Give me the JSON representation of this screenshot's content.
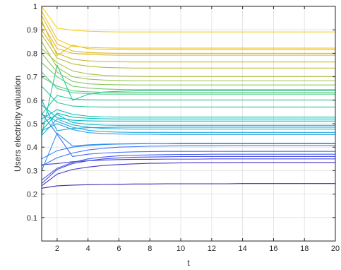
{
  "chart_data": {
    "type": "line",
    "title": "",
    "xlabel": "t",
    "ylabel": "Users electricity valuation",
    "xlim": [
      1,
      20
    ],
    "ylim": [
      0,
      1
    ],
    "x": [
      1,
      2,
      3,
      4,
      5,
      6,
      7,
      8,
      9,
      10,
      11,
      12,
      13,
      14,
      15,
      16,
      17,
      18,
      19,
      20
    ],
    "x_ticks": [
      2,
      4,
      6,
      8,
      10,
      12,
      14,
      16,
      18,
      20
    ],
    "x_tick_labels": [
      "2",
      "4",
      "6",
      "8",
      "10",
      "12",
      "14",
      "16",
      "18",
      "20"
    ],
    "y_ticks": [
      0.1,
      0.2,
      0.3,
      0.4,
      0.5,
      0.6,
      0.7,
      0.8,
      0.9,
      1
    ],
    "y_tick_labels": [
      "0.1",
      "0.2",
      "0.3",
      "0.4",
      "0.5",
      "0.6",
      "0.7",
      "0.8",
      "0.9",
      "1"
    ],
    "grid": true,
    "colormap": "parula",
    "series": [
      {
        "color": "#3e26a8",
        "values": [
          0.225,
          0.235,
          0.238,
          0.24,
          0.241,
          0.242,
          0.243,
          0.243,
          0.244,
          0.244,
          0.244,
          0.244,
          0.244,
          0.245,
          0.245,
          0.245,
          0.245,
          0.245,
          0.245,
          0.245
        ]
      },
      {
        "color": "#4134c4",
        "values": [
          0.235,
          0.285,
          0.305,
          0.315,
          0.322,
          0.326,
          0.329,
          0.331,
          0.332,
          0.333,
          0.334,
          0.334,
          0.334,
          0.335,
          0.335,
          0.335,
          0.335,
          0.335,
          0.335,
          0.335
        ]
      },
      {
        "color": "#4541d7",
        "values": [
          0.325,
          0.33,
          0.338,
          0.342,
          0.345,
          0.347,
          0.348,
          0.348,
          0.349,
          0.349,
          0.349,
          0.35,
          0.35,
          0.35,
          0.35,
          0.35,
          0.35,
          0.35,
          0.35,
          0.35
        ]
      },
      {
        "color": "#474fe4",
        "values": [
          0.245,
          0.305,
          0.33,
          0.342,
          0.35,
          0.354,
          0.357,
          0.358,
          0.359,
          0.36,
          0.36,
          0.36,
          0.36,
          0.36,
          0.36,
          0.36,
          0.36,
          0.36,
          0.36,
          0.36
        ]
      },
      {
        "color": "#475ded",
        "values": [
          0.26,
          0.31,
          0.335,
          0.35,
          0.358,
          0.363,
          0.366,
          0.367,
          0.368,
          0.369,
          0.369,
          0.37,
          0.37,
          0.37,
          0.37,
          0.37,
          0.37,
          0.37,
          0.37,
          0.37
        ]
      },
      {
        "color": "#446bf3",
        "values": [
          0.545,
          0.455,
          0.36,
          0.37,
          0.375,
          0.378,
          0.38,
          0.381,
          0.382,
          0.382,
          0.382,
          0.382,
          0.382,
          0.382,
          0.382,
          0.382,
          0.382,
          0.382,
          0.382,
          0.382
        ]
      },
      {
        "color": "#3b79f7",
        "values": [
          0.32,
          0.355,
          0.375,
          0.388,
          0.395,
          0.4,
          0.402,
          0.404,
          0.405,
          0.406,
          0.406,
          0.406,
          0.407,
          0.407,
          0.407,
          0.407,
          0.407,
          0.407,
          0.407,
          0.407
        ]
      },
      {
        "color": "#3286f4",
        "values": [
          0.35,
          0.385,
          0.4,
          0.407,
          0.411,
          0.413,
          0.414,
          0.415,
          0.415,
          0.415,
          0.415,
          0.415,
          0.415,
          0.415,
          0.415,
          0.415,
          0.415,
          0.415,
          0.415,
          0.415
        ]
      },
      {
        "color": "#2d93ed",
        "values": [
          0.3,
          0.46,
          0.405,
          0.41,
          0.413,
          0.414,
          0.415,
          0.416,
          0.416,
          0.417,
          0.417,
          0.417,
          0.417,
          0.417,
          0.417,
          0.417,
          0.417,
          0.417,
          0.417,
          0.417
        ]
      },
      {
        "color": "#2a9fe6",
        "values": [
          0.47,
          0.5,
          0.475,
          0.462,
          0.458,
          0.456,
          0.455,
          0.455,
          0.454,
          0.454,
          0.454,
          0.454,
          0.454,
          0.454,
          0.454,
          0.454,
          0.454,
          0.454,
          0.454,
          0.454
        ]
      },
      {
        "color": "#25a9df",
        "values": [
          0.54,
          0.51,
          0.485,
          0.472,
          0.466,
          0.464,
          0.463,
          0.463,
          0.463,
          0.463,
          0.463,
          0.463,
          0.463,
          0.463,
          0.463,
          0.463,
          0.463,
          0.463,
          0.463,
          0.463
        ]
      },
      {
        "color": "#1fb2d8",
        "values": [
          0.45,
          0.52,
          0.495,
          0.485,
          0.48,
          0.478,
          0.477,
          0.477,
          0.477,
          0.477,
          0.477,
          0.477,
          0.477,
          0.477,
          0.477,
          0.477,
          0.477,
          0.477,
          0.477,
          0.477
        ]
      },
      {
        "color": "#1aa5e0",
        "values": [
          0.6,
          0.47,
          0.48,
          0.483,
          0.484,
          0.485,
          0.485,
          0.485,
          0.485,
          0.485,
          0.485,
          0.485,
          0.485,
          0.485,
          0.485,
          0.485,
          0.485,
          0.485,
          0.485,
          0.485
        ]
      },
      {
        "color": "#12b7d0",
        "values": [
          0.5,
          0.54,
          0.505,
          0.497,
          0.494,
          0.493,
          0.493,
          0.493,
          0.493,
          0.493,
          0.493,
          0.493,
          0.493,
          0.493,
          0.493,
          0.493,
          0.493,
          0.493,
          0.493,
          0.493
        ]
      },
      {
        "color": "#06bdc5",
        "values": [
          0.58,
          0.525,
          0.515,
          0.512,
          0.511,
          0.511,
          0.511,
          0.511,
          0.511,
          0.511,
          0.511,
          0.511,
          0.511,
          0.511,
          0.511,
          0.511,
          0.511,
          0.511,
          0.511,
          0.511
        ]
      },
      {
        "color": "#04c1bb",
        "values": [
          0.47,
          0.545,
          0.528,
          0.523,
          0.521,
          0.52,
          0.52,
          0.52,
          0.52,
          0.52,
          0.52,
          0.52,
          0.52,
          0.52,
          0.52,
          0.52,
          0.52,
          0.52,
          0.52,
          0.52
        ]
      },
      {
        "color": "#0ec4b0",
        "values": [
          0.52,
          0.56,
          0.54,
          0.532,
          0.529,
          0.528,
          0.528,
          0.528,
          0.528,
          0.528,
          0.528,
          0.528,
          0.528,
          0.528,
          0.528,
          0.528,
          0.528,
          0.528,
          0.528,
          0.528
        ]
      },
      {
        "color": "#23c7a4",
        "values": [
          0.66,
          0.59,
          0.575,
          0.572,
          0.571,
          0.571,
          0.571,
          0.571,
          0.571,
          0.571,
          0.571,
          0.571,
          0.571,
          0.571,
          0.571,
          0.571,
          0.571,
          0.571,
          0.571,
          0.571
        ]
      },
      {
        "color": "#35ca97",
        "values": [
          0.54,
          0.62,
          0.605,
          0.602,
          0.601,
          0.601,
          0.601,
          0.601,
          0.601,
          0.601,
          0.601,
          0.601,
          0.601,
          0.601,
          0.601,
          0.601,
          0.601,
          0.601,
          0.601,
          0.601
        ]
      },
      {
        "color": "#49cb88",
        "values": [
          0.72,
          0.65,
          0.632,
          0.628,
          0.626,
          0.626,
          0.626,
          0.626,
          0.626,
          0.626,
          0.626,
          0.626,
          0.626,
          0.626,
          0.626,
          0.626,
          0.626,
          0.626,
          0.626,
          0.626
        ]
      },
      {
        "color": "#5dcb78",
        "values": [
          0.7,
          0.66,
          0.64,
          0.636,
          0.634,
          0.633,
          0.633,
          0.633,
          0.633,
          0.633,
          0.633,
          0.633,
          0.633,
          0.633,
          0.633,
          0.633,
          0.633,
          0.633,
          0.633,
          0.633
        ]
      },
      {
        "color": "#27c8a0",
        "values": [
          0.45,
          0.75,
          0.6,
          0.625,
          0.635,
          0.638,
          0.64,
          0.641,
          0.641,
          0.641,
          0.641,
          0.641,
          0.641,
          0.641,
          0.641,
          0.641,
          0.641,
          0.641,
          0.641,
          0.641
        ]
      },
      {
        "color": "#71ca6a",
        "values": [
          0.76,
          0.7,
          0.66,
          0.652,
          0.648,
          0.646,
          0.645,
          0.645,
          0.645,
          0.645,
          0.645,
          0.645,
          0.645,
          0.645,
          0.645,
          0.645,
          0.645,
          0.645,
          0.645,
          0.645
        ]
      },
      {
        "color": "#86c75c",
        "values": [
          0.8,
          0.72,
          0.68,
          0.67,
          0.667,
          0.666,
          0.665,
          0.665,
          0.665,
          0.665,
          0.665,
          0.665,
          0.665,
          0.665,
          0.665,
          0.665,
          0.665,
          0.665,
          0.665,
          0.665
        ]
      },
      {
        "color": "#99c44f",
        "values": [
          0.85,
          0.74,
          0.7,
          0.69,
          0.686,
          0.684,
          0.683,
          0.683,
          0.683,
          0.683,
          0.683,
          0.683,
          0.683,
          0.683,
          0.683,
          0.683,
          0.683,
          0.683,
          0.683,
          0.683
        ]
      },
      {
        "color": "#aac043",
        "values": [
          0.82,
          0.76,
          0.725,
          0.712,
          0.706,
          0.703,
          0.702,
          0.701,
          0.701,
          0.701,
          0.701,
          0.701,
          0.701,
          0.701,
          0.701,
          0.701,
          0.701,
          0.701,
          0.701,
          0.701
        ]
      },
      {
        "color": "#bbbc38",
        "values": [
          0.88,
          0.78,
          0.755,
          0.745,
          0.74,
          0.738,
          0.737,
          0.737,
          0.737,
          0.737,
          0.737,
          0.737,
          0.737,
          0.737,
          0.737,
          0.737,
          0.737,
          0.737,
          0.737,
          0.737
        ]
      },
      {
        "color": "#cab92f",
        "values": [
          0.9,
          0.8,
          0.775,
          0.768,
          0.765,
          0.764,
          0.763,
          0.763,
          0.763,
          0.763,
          0.763,
          0.763,
          0.763,
          0.763,
          0.763,
          0.763,
          0.763,
          0.763,
          0.763,
          0.763
        ]
      },
      {
        "color": "#d8b726",
        "values": [
          0.93,
          0.82,
          0.8,
          0.795,
          0.793,
          0.792,
          0.792,
          0.792,
          0.792,
          0.792,
          0.792,
          0.792,
          0.792,
          0.792,
          0.792,
          0.792,
          0.792,
          0.792,
          0.792,
          0.792
        ]
      },
      {
        "color": "#e3b81f",
        "values": [
          0.96,
          0.84,
          0.81,
          0.803,
          0.801,
          0.8,
          0.8,
          0.8,
          0.8,
          0.8,
          0.8,
          0.8,
          0.8,
          0.8,
          0.8,
          0.8,
          0.8,
          0.8,
          0.8,
          0.8
        ]
      },
      {
        "color": "#ecbd1c",
        "values": [
          0.94,
          0.79,
          0.835,
          0.82,
          0.817,
          0.816,
          0.815,
          0.815,
          0.815,
          0.815,
          0.815,
          0.815,
          0.815,
          0.815,
          0.815,
          0.815,
          0.815,
          0.815,
          0.815,
          0.815
        ]
      },
      {
        "color": "#f3c51c",
        "values": [
          0.98,
          0.86,
          0.83,
          0.825,
          0.823,
          0.822,
          0.822,
          0.822,
          0.822,
          0.822,
          0.822,
          0.822,
          0.822,
          0.822,
          0.822,
          0.822,
          0.822,
          0.822,
          0.822,
          0.822
        ]
      },
      {
        "color": "#f8d21b",
        "values": [
          1.0,
          0.908,
          0.898,
          0.894,
          0.892,
          0.891,
          0.891,
          0.891,
          0.891,
          0.891,
          0.891,
          0.891,
          0.891,
          0.891,
          0.891,
          0.891,
          0.891,
          0.891,
          0.891,
          0.891
        ]
      }
    ]
  }
}
